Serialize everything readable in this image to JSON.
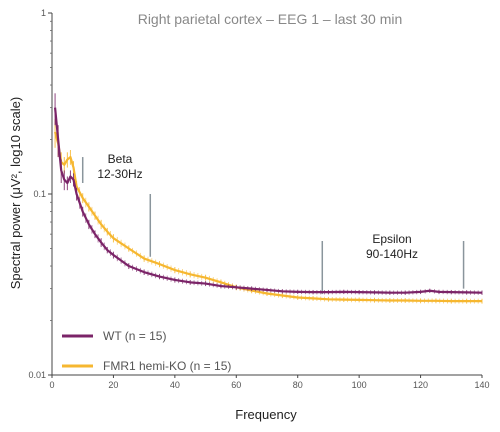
{
  "chart_data": {
    "type": "line",
    "title": "Right parietal cortex – EEG 1 – last 30 min",
    "xlabel": "Frequency",
    "ylabel": "Spectral power (μV², log10 scale)",
    "xlim": [
      0,
      140
    ],
    "ylim": [
      0.01,
      1
    ],
    "yscale": "log",
    "x_ticks": [
      "0",
      "20",
      "40",
      "60",
      "80",
      "100",
      "120",
      "140"
    ],
    "y_ticks": [
      "1",
      "0.1",
      "0.01"
    ],
    "grid": false,
    "legend_position": "bottom-left",
    "bands": [
      {
        "label": "Beta",
        "range": "12-30Hz",
        "start": 10,
        "end": 32
      },
      {
        "label": "Epsilon",
        "range": "90-140Hz",
        "start": 88,
        "end": 134
      }
    ],
    "series": [
      {
        "name": "WT (n = 15)",
        "color": "#7b2468",
        "x": [
          1,
          2,
          3,
          4,
          5,
          6,
          7,
          8,
          10,
          12,
          14,
          16,
          18,
          20,
          25,
          30,
          35,
          40,
          45,
          50,
          55,
          60,
          65,
          70,
          75,
          80,
          85,
          90,
          95,
          100,
          105,
          110,
          115,
          120,
          123,
          126,
          130,
          135,
          140
        ],
        "y": [
          0.3,
          0.2,
          0.135,
          0.12,
          0.115,
          0.125,
          0.12,
          0.1,
          0.08,
          0.068,
          0.06,
          0.054,
          0.049,
          0.046,
          0.04,
          0.037,
          0.035,
          0.0335,
          0.0325,
          0.032,
          0.031,
          0.0305,
          0.03,
          0.0295,
          0.029,
          0.0288,
          0.0287,
          0.0287,
          0.0288,
          0.0287,
          0.0286,
          0.0285,
          0.0285,
          0.0288,
          0.0292,
          0.0288,
          0.0287,
          0.0286,
          0.0285
        ],
        "err": [
          0.06,
          0.04,
          0.02,
          0.015,
          0.01,
          0.01,
          0.01,
          0.008,
          0.005,
          0.004,
          0.003,
          0.003,
          0.002,
          0.002,
          0.0015,
          0.0013,
          0.0012,
          0.0011,
          0.001,
          0.001,
          0.0009,
          0.0009,
          0.0009,
          0.0008,
          0.0008,
          0.0008,
          0.0008,
          0.0008,
          0.0008,
          0.0008,
          0.0008,
          0.0008,
          0.0008,
          0.0008,
          0.0008,
          0.0008,
          0.0008,
          0.0008,
          0.0008
        ]
      },
      {
        "name": "FMR1 hemi-KO (n = 15)",
        "color": "#f6b730",
        "x": [
          1,
          2,
          3,
          4,
          5,
          6,
          7,
          8,
          10,
          12,
          14,
          16,
          18,
          20,
          25,
          30,
          35,
          40,
          45,
          50,
          55,
          60,
          65,
          70,
          75,
          80,
          85,
          90,
          95,
          100,
          105,
          110,
          115,
          120,
          125,
          130,
          135,
          140
        ],
        "y": [
          0.22,
          0.19,
          0.15,
          0.145,
          0.155,
          0.16,
          0.14,
          0.11,
          0.095,
          0.085,
          0.076,
          0.068,
          0.062,
          0.057,
          0.05,
          0.044,
          0.041,
          0.038,
          0.036,
          0.0345,
          0.0325,
          0.0305,
          0.0293,
          0.0282,
          0.0275,
          0.0268,
          0.0265,
          0.0262,
          0.0261,
          0.026,
          0.0259,
          0.0258,
          0.0258,
          0.0257,
          0.0257,
          0.0256,
          0.0256,
          0.0256
        ],
        "err": [
          0.04,
          0.03,
          0.02,
          0.015,
          0.015,
          0.015,
          0.012,
          0.008,
          0.006,
          0.005,
          0.004,
          0.004,
          0.003,
          0.003,
          0.002,
          0.0018,
          0.0016,
          0.0015,
          0.0014,
          0.0013,
          0.0012,
          0.0011,
          0.001,
          0.0009,
          0.0009,
          0.0008,
          0.0008,
          0.0008,
          0.0008,
          0.0008,
          0.0008,
          0.0008,
          0.0008,
          0.0008,
          0.0008,
          0.0008,
          0.0008,
          0.0008
        ]
      }
    ]
  }
}
